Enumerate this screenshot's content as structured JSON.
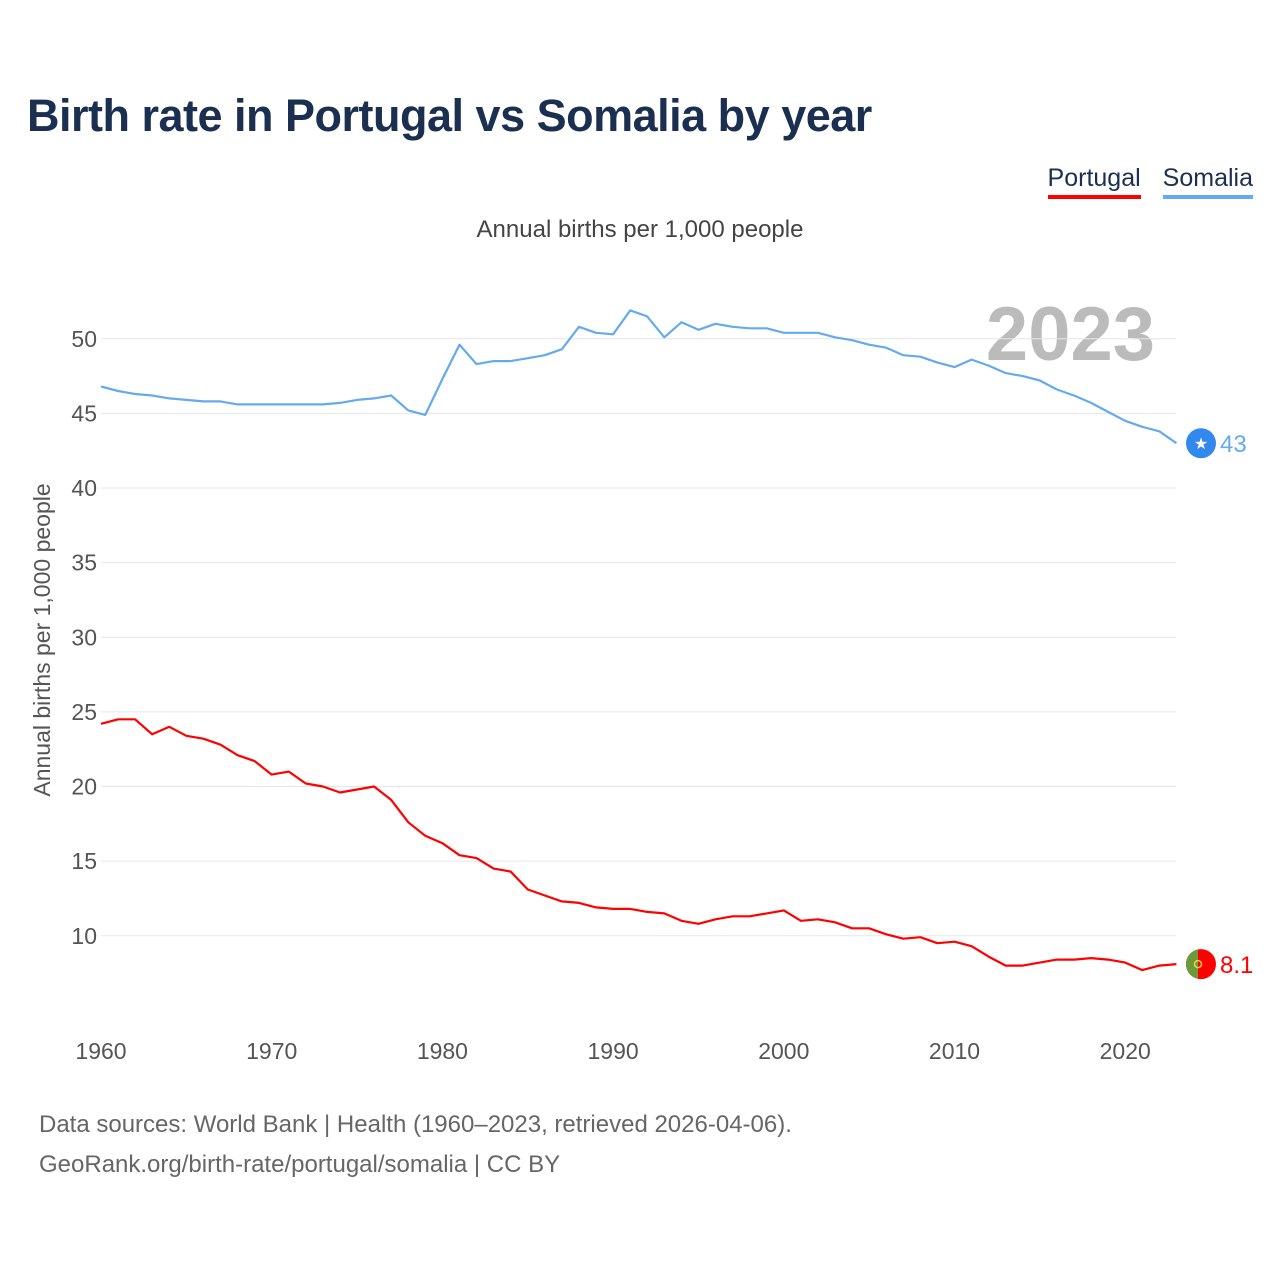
{
  "title": "Birth rate in Portugal vs Somalia by year",
  "subtitle": "Annual births per 1,000 people",
  "footer": {
    "line1": "Data sources: World Bank | Health (1960–2023, retrieved 2026-04-06).",
    "line2": "GeoRank.org/birth-rate/portugal/somalia | CC BY"
  },
  "year_watermark": "2023",
  "chart_data": {
    "type": "line",
    "title": "Birth rate in Portugal vs Somalia by year",
    "xlabel": "",
    "ylabel": "Annual births per 1,000 people",
    "xlim": [
      1960,
      2023
    ],
    "ylim": [
      5,
      53
    ],
    "x_ticks": [
      "1960",
      "1970",
      "1980",
      "1990",
      "2000",
      "2010",
      "2020"
    ],
    "y_ticks": [
      "10",
      "15",
      "20",
      "25",
      "30",
      "35",
      "40",
      "45",
      "50"
    ],
    "grid": true,
    "legend_placement": "top-right",
    "x": [
      1960,
      1961,
      1962,
      1963,
      1964,
      1965,
      1966,
      1967,
      1968,
      1969,
      1970,
      1971,
      1972,
      1973,
      1974,
      1975,
      1976,
      1977,
      1978,
      1979,
      1980,
      1981,
      1982,
      1983,
      1984,
      1985,
      1986,
      1987,
      1988,
      1989,
      1990,
      1991,
      1992,
      1993,
      1994,
      1995,
      1996,
      1997,
      1998,
      1999,
      2000,
      2001,
      2002,
      2003,
      2004,
      2005,
      2006,
      2007,
      2008,
      2009,
      2010,
      2011,
      2012,
      2013,
      2014,
      2015,
      2016,
      2017,
      2018,
      2019,
      2020,
      2021,
      2022,
      2023
    ],
    "series": [
      {
        "name": "Portugal",
        "color": "#ff0000",
        "end_label": "8.1",
        "values": [
          24.2,
          24.5,
          24.5,
          23.5,
          24.0,
          23.4,
          23.2,
          22.8,
          22.1,
          21.7,
          20.8,
          21.0,
          20.2,
          20.0,
          19.6,
          19.8,
          20.0,
          19.1,
          17.6,
          16.7,
          16.2,
          15.4,
          15.2,
          14.5,
          14.3,
          13.1,
          12.7,
          12.3,
          12.2,
          11.9,
          11.8,
          11.8,
          11.6,
          11.5,
          11.0,
          10.8,
          11.1,
          11.3,
          11.3,
          11.5,
          11.7,
          11.0,
          11.1,
          10.9,
          10.5,
          10.5,
          10.1,
          9.8,
          9.9,
          9.5,
          9.6,
          9.3,
          8.6,
          8.0,
          8.0,
          8.2,
          8.4,
          8.4,
          8.5,
          8.4,
          8.2,
          7.7,
          8.0,
          8.1
        ]
      },
      {
        "name": "Somalia",
        "color": "#66aaee",
        "end_label": "43",
        "values": [
          46.8,
          46.5,
          46.3,
          46.2,
          46.0,
          45.9,
          45.8,
          45.8,
          45.6,
          45.6,
          45.6,
          45.6,
          45.6,
          45.6,
          45.7,
          45.9,
          46.0,
          46.2,
          45.2,
          44.9,
          47.3,
          49.6,
          48.3,
          48.5,
          48.5,
          48.7,
          48.9,
          49.3,
          50.8,
          50.4,
          50.3,
          51.9,
          51.5,
          50.1,
          51.1,
          50.6,
          51.0,
          50.8,
          50.7,
          50.7,
          50.4,
          50.4,
          50.4,
          50.1,
          49.9,
          49.6,
          49.4,
          48.9,
          48.8,
          48.4,
          48.1,
          48.6,
          48.2,
          47.7,
          47.5,
          47.2,
          46.6,
          46.2,
          45.7,
          45.1,
          44.5,
          44.1,
          43.8,
          43.0
        ]
      }
    ]
  }
}
